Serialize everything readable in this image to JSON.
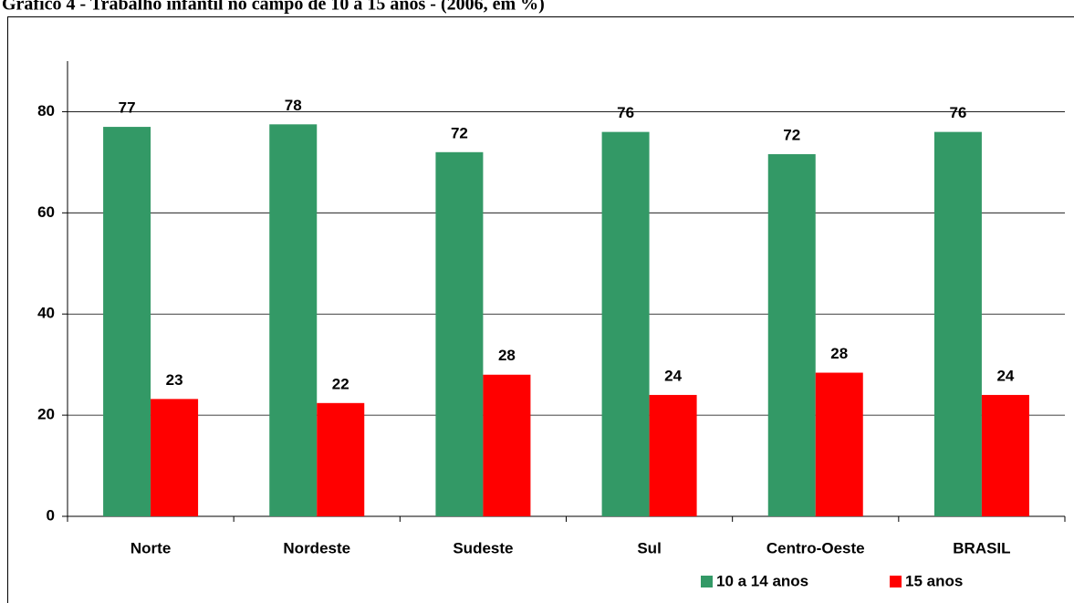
{
  "chart_data": {
    "type": "bar",
    "title": "Gráfico 4 - Trabalho infantil no campo de 10 a 15 anos - (2006, em %)",
    "categories": [
      "Norte",
      "Nordeste",
      "Sudeste",
      "Sul",
      "Centro-Oeste",
      "BRASIL"
    ],
    "series": [
      {
        "name": "10 a 14 anos",
        "color": "#339966",
        "values": [
          77,
          77.5,
          72,
          76,
          71.6,
          76
        ],
        "value_labels": [
          "77",
          "78",
          "72",
          "76",
          "72",
          "76"
        ]
      },
      {
        "name": "15 anos",
        "color": "#ff0000",
        "values": [
          23.2,
          22.4,
          28,
          24,
          28.4,
          24
        ],
        "value_labels": [
          "23",
          "22",
          "28",
          "24",
          "28",
          "24"
        ]
      }
    ],
    "ylim": [
      0,
      90
    ],
    "yticks": [
      0,
      20,
      40,
      60,
      80
    ],
    "grid": true
  }
}
